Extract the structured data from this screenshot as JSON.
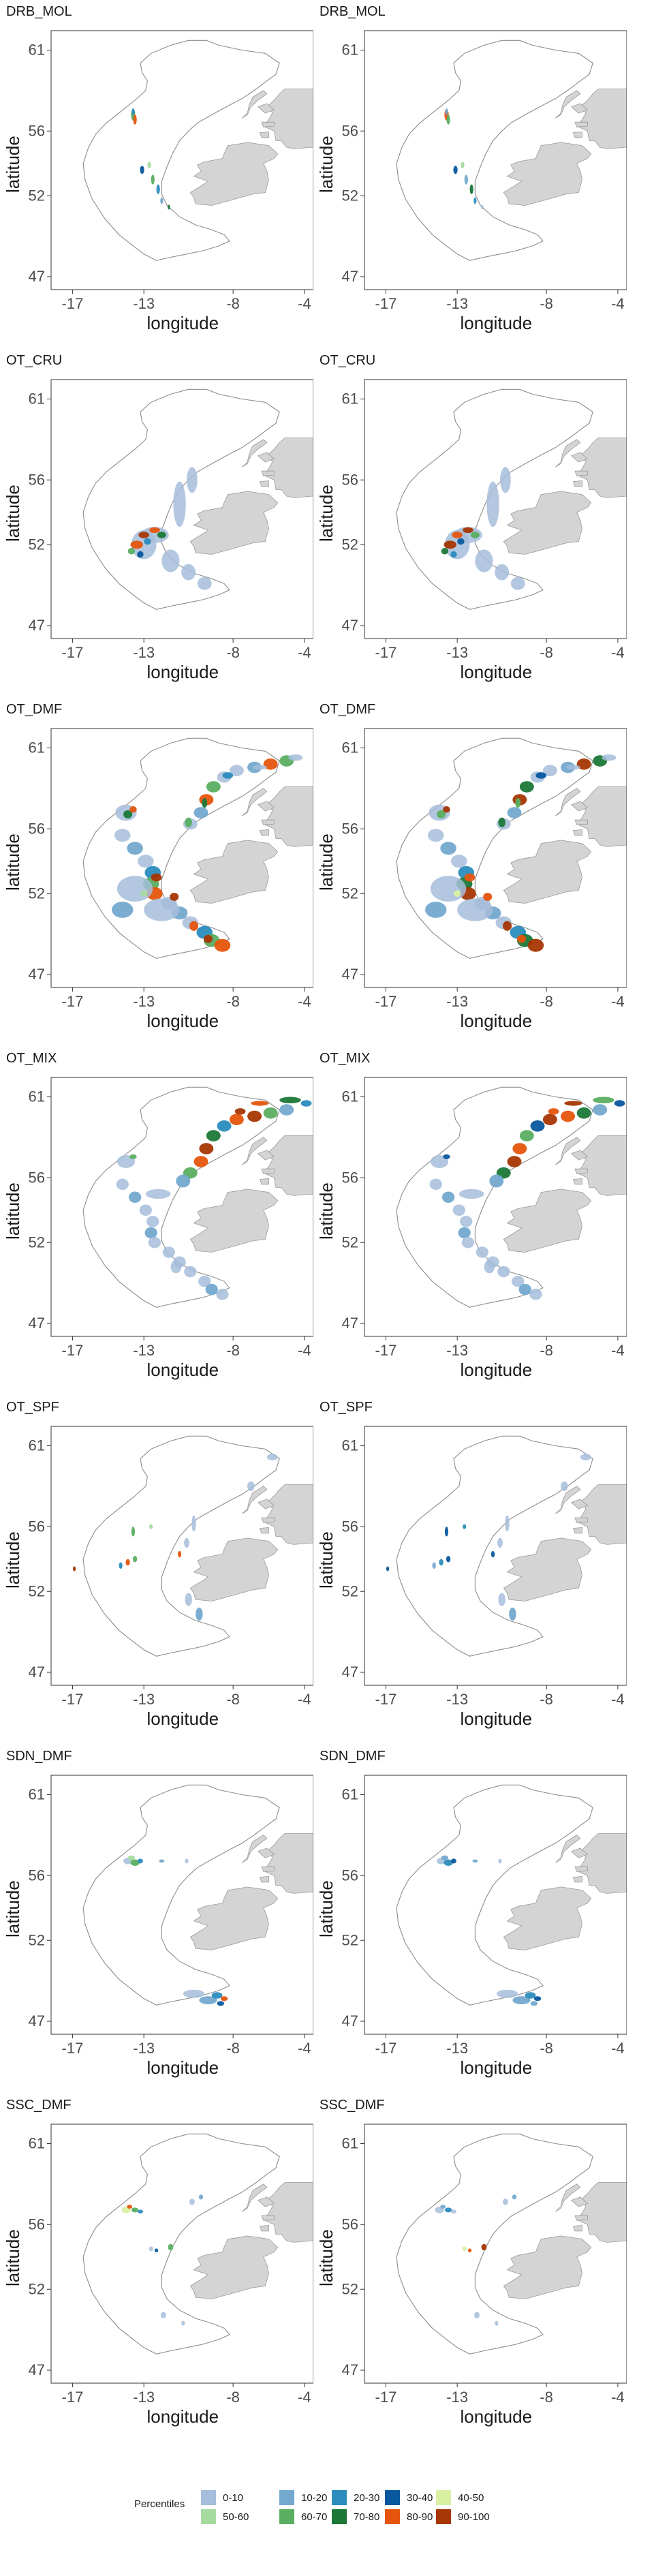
{
  "axes": {
    "xlabel": "longitude",
    "ylabel": "latitude",
    "x_ticks": [
      -17,
      -13,
      -8,
      -4
    ],
    "y_ticks": [
      61,
      56,
      52,
      47
    ],
    "xlim": [
      -18.2,
      -3.5
    ],
    "ylim": [
      46.2,
      62.2
    ]
  },
  "colors": {
    "land": "#d4d4d4",
    "land_stroke": "#9a9a9a",
    "boundary": "#8c8c8c",
    "panel_border": "#333333"
  },
  "panels": [
    {
      "title": "DRB_MOL"
    },
    {
      "title": "DRB_MOL"
    },
    {
      "title": "OT_CRU"
    },
    {
      "title": "OT_CRU"
    },
    {
      "title": "OT_DMF"
    },
    {
      "title": "OT_DMF"
    },
    {
      "title": "OT_MIX"
    },
    {
      "title": "OT_MIX"
    },
    {
      "title": "OT_SPF"
    },
    {
      "title": "OT_SPF"
    },
    {
      "title": "SDN_DMF"
    },
    {
      "title": "SDN_DMF"
    },
    {
      "title": "SSC_DMF"
    },
    {
      "title": "SSC_DMF"
    }
  ],
  "legend": {
    "title": "Percentiles",
    "items": [
      {
        "label": "0-10",
        "color": "#a6bddb"
      },
      {
        "label": "10-20",
        "color": "#74a9cf"
      },
      {
        "label": "20-30",
        "color": "#2b8cbe"
      },
      {
        "label": "30-40",
        "color": "#08589e"
      },
      {
        "label": "40-50",
        "color": "#d9f0a3"
      },
      {
        "label": "50-60",
        "color": "#a6dba0"
      },
      {
        "label": "60-70",
        "color": "#5aae61"
      },
      {
        "label": "70-80",
        "color": "#1b7837"
      },
      {
        "label": "80-90",
        "color": "#e6550d"
      },
      {
        "label": "90-100",
        "color": "#a63603"
      }
    ]
  }
}
